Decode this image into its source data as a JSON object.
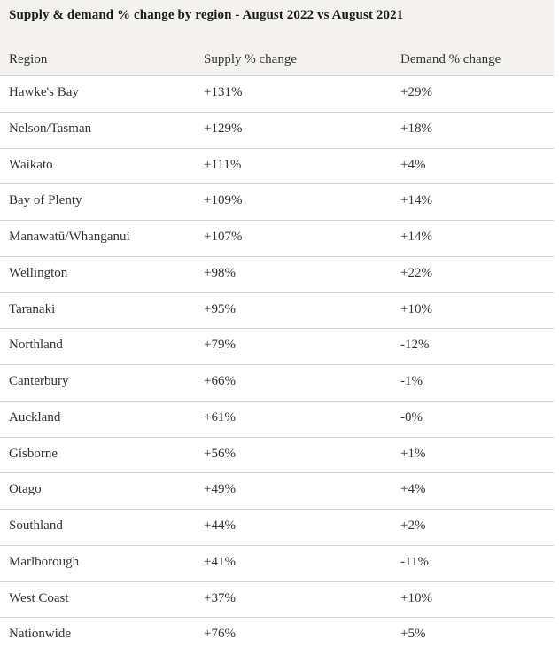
{
  "title": "Supply & demand % change by region - August 2022 vs August 2021",
  "table": {
    "columns": [
      "Region",
      "Supply % change",
      "Demand % change"
    ],
    "rows": [
      {
        "region": "Hawke's Bay",
        "supply": "+131%",
        "demand": "+29%"
      },
      {
        "region": "Nelson/Tasman",
        "supply": "+129%",
        "demand": "+18%"
      },
      {
        "region": "Waikato",
        "supply": "+111%",
        "demand": "+4%"
      },
      {
        "region": "Bay of Plenty",
        "supply": "+109%",
        "demand": "+14%"
      },
      {
        "region": "Manawatū/Whanganui",
        "supply": "+107%",
        "demand": "+14%"
      },
      {
        "region": "Wellington",
        "supply": "+98%",
        "demand": "+22%"
      },
      {
        "region": "Taranaki",
        "supply": "+95%",
        "demand": "+10%"
      },
      {
        "region": "Northland",
        "supply": "+79%",
        "demand": "-12%"
      },
      {
        "region": "Canterbury",
        "supply": "+66%",
        "demand": "-1%"
      },
      {
        "region": "Auckland",
        "supply": "+61%",
        "demand": "-0%"
      },
      {
        "region": "Gisborne",
        "supply": "+56%",
        "demand": "+1%"
      },
      {
        "region": "Otago",
        "supply": "+49%",
        "demand": "+4%"
      },
      {
        "region": "Southland",
        "supply": "+44%",
        "demand": "+2%"
      },
      {
        "region": "Marlborough",
        "supply": "+41%",
        "demand": "-11%"
      },
      {
        "region": "West Coast",
        "supply": "+37%",
        "demand": "+10%"
      },
      {
        "region": "Nationwide",
        "supply": "+76%",
        "demand": "+5%"
      }
    ]
  },
  "chart_data": {
    "type": "table",
    "title": "Supply & demand % change by region - August 2022 vs August 2021",
    "categories": [
      "Hawke's Bay",
      "Nelson/Tasman",
      "Waikato",
      "Bay of Plenty",
      "Manawatū/Whanganui",
      "Wellington",
      "Taranaki",
      "Northland",
      "Canterbury",
      "Auckland",
      "Gisborne",
      "Otago",
      "Southland",
      "Marlborough",
      "West Coast",
      "Nationwide"
    ],
    "series": [
      {
        "name": "Supply % change",
        "values": [
          131,
          129,
          111,
          109,
          107,
          98,
          95,
          79,
          66,
          61,
          56,
          49,
          44,
          41,
          37,
          76
        ]
      },
      {
        "name": "Demand % change",
        "values": [
          29,
          18,
          4,
          14,
          14,
          22,
          10,
          -12,
          -1,
          0,
          1,
          4,
          2,
          -11,
          10,
          5
        ]
      }
    ]
  },
  "colors": {
    "header_bg": "#f3f2ef",
    "row_bg": "#ffffff",
    "border": "#d5d4d2",
    "text": "#333333",
    "title_text": "#1b1b1b"
  }
}
